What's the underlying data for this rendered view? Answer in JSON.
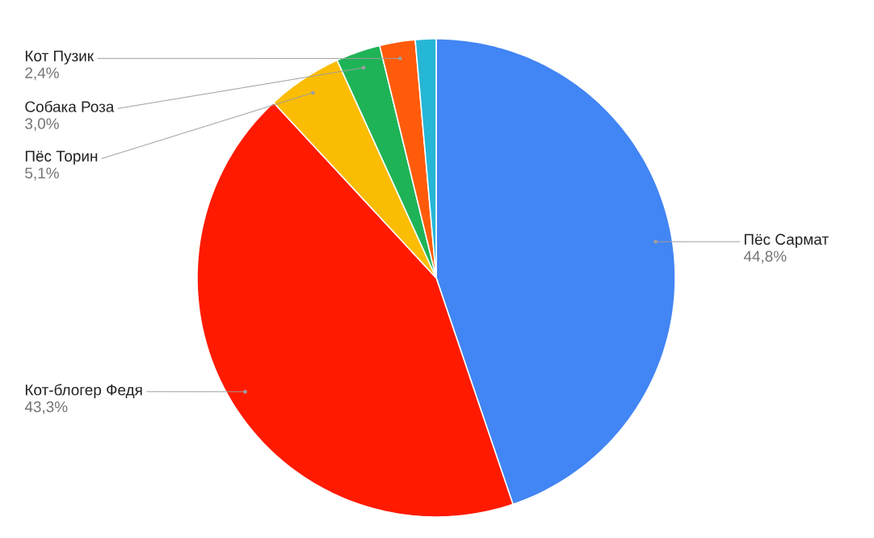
{
  "chart_data": {
    "type": "pie",
    "categories": [
      "Пёс Сармат",
      "Кот-блогер Федя",
      "Пёс Торин",
      "Собака Роза",
      "Кот Пузик",
      null
    ],
    "values": [
      44.8,
      43.3,
      5.1,
      3.0,
      2.4,
      1.4
    ],
    "value_labels": [
      "44,8%",
      "43,3%",
      "5,1%",
      "3,0%",
      "2,4%",
      null
    ],
    "colors": [
      "#4285f4",
      "#ff1a00",
      "#fbbc04",
      "#1fb357",
      "#ff5b0a",
      "#26b6d6"
    ]
  }
}
